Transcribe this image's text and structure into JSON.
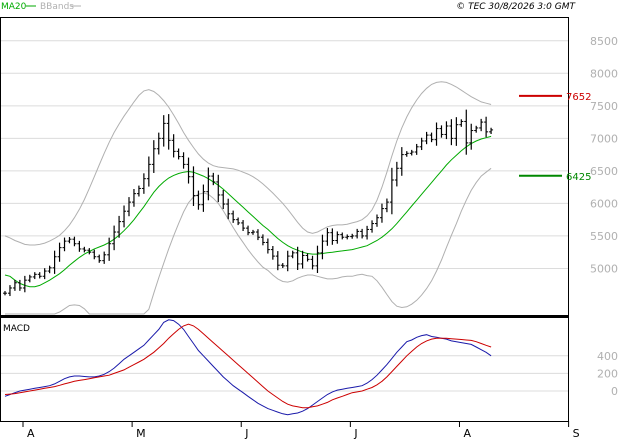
{
  "header": {
    "legend_ma20": "MA20",
    "legend_bbands": "BBands",
    "copyright": "© TEC 30/8/2026 3:0 GMT"
  },
  "colors": {
    "price": "#000000",
    "ma20": "#00aa00",
    "bbands": "#b0b0b0",
    "resistance": "#cc0000",
    "support": "#008800",
    "macd": "#1a1aaa",
    "signal": "#cc0000",
    "grid": "#dcdcdc",
    "axis_text": "#b0b0b0"
  },
  "chart_data": [
    {
      "type": "bar",
      "title": "",
      "price_axis": {
        "ylim": [
          4300,
          8850
        ],
        "ticks": [
          5000,
          5500,
          6000,
          6500,
          7000,
          7500,
          8000,
          8500
        ]
      },
      "x_ticks": [
        {
          "label": "A",
          "index": 0
        },
        {
          "label": "M",
          "index": 22
        },
        {
          "label": "J",
          "index": 44
        },
        {
          "label": "J",
          "index": 66
        },
        {
          "label": "A",
          "index": 88
        },
        {
          "label": "S",
          "index": 110
        }
      ],
      "levels": [
        {
          "name": "resistance",
          "label": "7652",
          "value": 7652
        },
        {
          "name": "support",
          "label": "6425",
          "value": 6425
        }
      ],
      "close": [
        4620,
        4700,
        4780,
        4700,
        4820,
        4870,
        4910,
        4880,
        4960,
        5010,
        5180,
        5320,
        5420,
        5450,
        5380,
        5300,
        5280,
        5250,
        5180,
        5120,
        5210,
        5380,
        5560,
        5720,
        5880,
        6020,
        6150,
        6230,
        6380,
        6600,
        6840,
        7000,
        7230,
        6970,
        6800,
        6720,
        6600,
        6410,
        6120,
        5980,
        6180,
        6420,
        6330,
        6130,
        5990,
        5840,
        5750,
        5700,
        5620,
        5550,
        5560,
        5480,
        5400,
        5290,
        5190,
        5050,
        5040,
        5190,
        5240,
        5070,
        5200,
        5140,
        5040,
        5240,
        5420,
        5550,
        5430,
        5520,
        5480,
        5490,
        5500,
        5570,
        5500,
        5600,
        5690,
        5780,
        5920,
        6020,
        6360,
        6540,
        6750,
        6770,
        6790,
        6870,
        6960,
        7050,
        6980,
        7150,
        7060,
        7190,
        7000,
        7210,
        7260,
        6930,
        7120,
        7160,
        7250,
        7100,
        7130
      ],
      "ma20": [
        4900,
        4880,
        4820,
        4770,
        4740,
        4720,
        4720,
        4740,
        4780,
        4820,
        4870,
        4920,
        4980,
        5050,
        5110,
        5170,
        5220,
        5260,
        5300,
        5330,
        5360,
        5400,
        5450,
        5510,
        5580,
        5660,
        5750,
        5850,
        5950,
        6060,
        6170,
        6260,
        6330,
        6390,
        6430,
        6460,
        6480,
        6490,
        6480,
        6450,
        6420,
        6380,
        6330,
        6280,
        6220,
        6150,
        6080,
        6010,
        5940,
        5870,
        5800,
        5730,
        5660,
        5600,
        5530,
        5460,
        5400,
        5350,
        5310,
        5280,
        5250,
        5230,
        5220,
        5220,
        5230,
        5240,
        5250,
        5260,
        5270,
        5280,
        5290,
        5310,
        5330,
        5350,
        5390,
        5430,
        5480,
        5540,
        5610,
        5690,
        5780,
        5870,
        5960,
        6050,
        6140,
        6230,
        6320,
        6410,
        6500,
        6590,
        6670,
        6740,
        6810,
        6870,
        6920,
        6960,
        6990,
        7010,
        7030
      ],
      "bb_upper": [
        5500,
        5470,
        5430,
        5400,
        5370,
        5360,
        5360,
        5370,
        5390,
        5420,
        5460,
        5510,
        5580,
        5670,
        5780,
        5910,
        6060,
        6230,
        6410,
        6590,
        6770,
        6940,
        7090,
        7220,
        7340,
        7450,
        7560,
        7660,
        7730,
        7750,
        7720,
        7660,
        7580,
        7480,
        7360,
        7230,
        7090,
        6970,
        6860,
        6760,
        6680,
        6620,
        6580,
        6560,
        6550,
        6540,
        6530,
        6510,
        6480,
        6450,
        6410,
        6360,
        6300,
        6230,
        6160,
        6080,
        6000,
        5910,
        5810,
        5710,
        5620,
        5560,
        5540,
        5560,
        5600,
        5640,
        5660,
        5670,
        5670,
        5680,
        5700,
        5720,
        5750,
        5810,
        5900,
        6050,
        6250,
        6480,
        6730,
        6960,
        7160,
        7330,
        7470,
        7590,
        7690,
        7770,
        7830,
        7860,
        7870,
        7860,
        7830,
        7790,
        7740,
        7690,
        7640,
        7600,
        7560,
        7540,
        7520
      ],
      "bb_lower": [
        4300,
        4290,
        4210,
        4140,
        4110,
        4080,
        4080,
        4110,
        4170,
        4220,
        4280,
        4330,
        4380,
        4430,
        4440,
        4430,
        4380,
        4290,
        4190,
        4070,
        3950,
        3860,
        3810,
        3800,
        3820,
        3870,
        3940,
        4040,
        4170,
        4370,
        4620,
        4860,
        5080,
        5300,
        5500,
        5690,
        5870,
        6010,
        6100,
        6140,
        6160,
        6140,
        6080,
        6000,
        5890,
        5760,
        5630,
        5510,
        5400,
        5290,
        5190,
        5100,
        5020,
        4970,
        4900,
        4840,
        4800,
        4790,
        4810,
        4850,
        4880,
        4900,
        4900,
        4880,
        4860,
        4840,
        4840,
        4850,
        4870,
        4880,
        4880,
        4900,
        4910,
        4890,
        4880,
        4810,
        4710,
        4600,
        4490,
        4420,
        4400,
        4410,
        4450,
        4510,
        4590,
        4690,
        4810,
        4960,
        5130,
        5320,
        5510,
        5690,
        5880,
        6050,
        6200,
        6320,
        6420,
        6480,
        6540
      ],
      "macd_axis": {
        "ylim": [
          -330,
          830
        ],
        "ticks": [
          0,
          200,
          400
        ],
        "label": "MACD"
      },
      "macd": [
        -60,
        -40,
        -20,
        0,
        10,
        20,
        30,
        40,
        50,
        60,
        80,
        110,
        140,
        160,
        170,
        170,
        165,
        160,
        160,
        170,
        190,
        220,
        260,
        310,
        360,
        400,
        440,
        480,
        520,
        580,
        640,
        700,
        780,
        810,
        800,
        760,
        700,
        620,
        540,
        460,
        400,
        340,
        280,
        220,
        160,
        110,
        60,
        20,
        -20,
        -60,
        -100,
        -140,
        -170,
        -200,
        -220,
        -240,
        -260,
        -270,
        -260,
        -250,
        -230,
        -200,
        -160,
        -120,
        -80,
        -40,
        -10,
        10,
        20,
        30,
        40,
        50,
        60,
        90,
        130,
        180,
        240,
        300,
        370,
        440,
        500,
        560,
        580,
        610,
        630,
        640,
        620,
        610,
        600,
        590,
        570,
        560,
        550,
        540,
        530,
        500,
        470,
        440,
        400
      ],
      "signal": [
        -40,
        -35,
        -30,
        -20,
        -10,
        0,
        10,
        20,
        30,
        40,
        50,
        65,
        80,
        95,
        110,
        120,
        130,
        140,
        150,
        160,
        170,
        180,
        200,
        220,
        240,
        270,
        300,
        330,
        360,
        400,
        440,
        490,
        540,
        600,
        650,
        700,
        740,
        760,
        740,
        700,
        650,
        600,
        550,
        500,
        450,
        400,
        350,
        300,
        250,
        200,
        150,
        100,
        50,
        0,
        -40,
        -80,
        -120,
        -150,
        -170,
        -180,
        -190,
        -190,
        -180,
        -170,
        -150,
        -130,
        -100,
        -80,
        -60,
        -40,
        -20,
        -10,
        0,
        20,
        40,
        70,
        110,
        160,
        220,
        280,
        340,
        400,
        450,
        500,
        540,
        570,
        590,
        600,
        600,
        600,
        595,
        590,
        585,
        580,
        575,
        560,
        540,
        520,
        500
      ]
    }
  ]
}
